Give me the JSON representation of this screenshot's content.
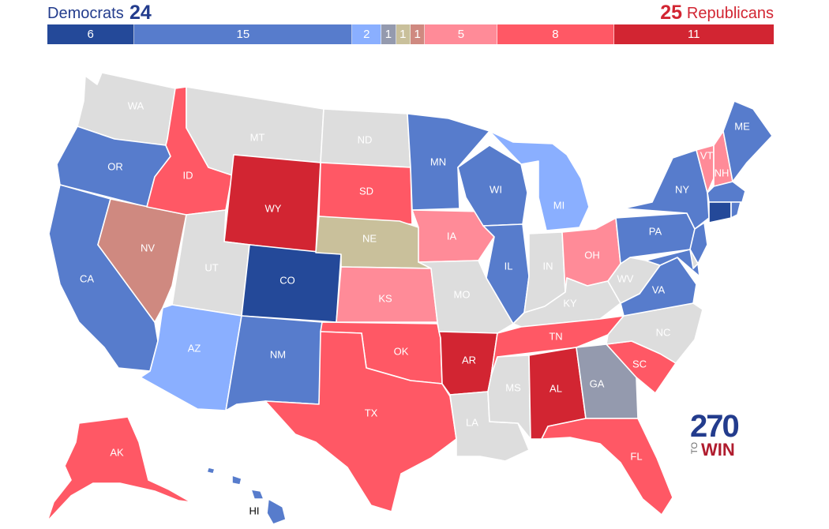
{
  "header": {
    "dem_label": "Democrats",
    "dem_count": "24",
    "rep_count": "25",
    "rep_label": "Republicans"
  },
  "bar": [
    {
      "value": "6",
      "count": 6,
      "color": "#244999"
    },
    {
      "value": "15",
      "count": 15,
      "color": "#577ccc"
    },
    {
      "value": "2",
      "count": 2,
      "color": "#8aafff"
    },
    {
      "value": "1",
      "count": 1,
      "color": "#949aae"
    },
    {
      "value": "1",
      "count": 1,
      "color": "#c9c09b"
    },
    {
      "value": "1",
      "count": 1,
      "color": "#cf8980"
    },
    {
      "value": "5",
      "count": 5,
      "color": "#ff8b98"
    },
    {
      "value": "8",
      "count": 8,
      "color": "#ff5865"
    },
    {
      "value": "11",
      "count": 11,
      "color": "#d22532"
    }
  ],
  "colors": {
    "safe_d": "#244999",
    "likely_d": "#577ccc",
    "lean_d": "#8aafff",
    "tossup": "#949aae",
    "nebraska": "#c9c09b",
    "tilt_r": "#cf8980",
    "lean_r": "#ff8b98",
    "likely_r": "#ff5865",
    "safe_r": "#d22532",
    "no_race": "#dddddd"
  },
  "states": {
    "WA": "WA",
    "OR": "OR",
    "CA": "CA",
    "NV": "NV",
    "ID": "ID",
    "MT": "MT",
    "WY": "WY",
    "UT": "UT",
    "AZ": "AZ",
    "CO": "CO",
    "NM": "NM",
    "ND": "ND",
    "SD": "SD",
    "NE": "NE",
    "KS": "KS",
    "OK": "OK",
    "TX": "TX",
    "MN": "MN",
    "IA": "IA",
    "MO": "MO",
    "AR": "AR",
    "LA": "LA",
    "WI": "WI",
    "IL": "IL",
    "MI": "MI",
    "IN": "IN",
    "OH": "OH",
    "KY": "KY",
    "TN": "TN",
    "MS": "MS",
    "AL": "AL",
    "GA": "GA",
    "FL": "FL",
    "SC": "SC",
    "NC": "NC",
    "VA": "VA",
    "WV": "WV",
    "PA": "PA",
    "NY": "NY",
    "VT": "VT",
    "NH": "NH",
    "ME": "ME",
    "AK": "AK",
    "HI": "HI"
  },
  "logo": {
    "number": "270",
    "to": "TO",
    "win": "WIN"
  }
}
